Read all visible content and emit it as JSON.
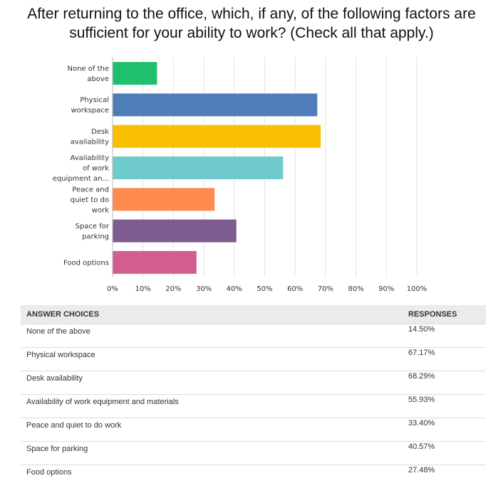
{
  "chart_data": {
    "type": "bar",
    "orientation": "horizontal",
    "title": "After returning to the office, which, if any, of the following factors are sufficient for your ability to work? (Check all that apply.)",
    "categories": [
      [
        "None of the",
        "above"
      ],
      [
        "Physical",
        "workspace"
      ],
      [
        "Desk",
        "availability"
      ],
      [
        "Availability",
        "of work",
        "equipment an..."
      ],
      [
        "Peace and",
        "quiet to do",
        "work"
      ],
      [
        "Space for",
        "parking"
      ],
      [
        "Food options"
      ]
    ],
    "values": [
      14.5,
      67.17,
      68.29,
      55.93,
      33.4,
      40.57,
      27.48
    ],
    "colors": [
      "#1fbf6e",
      "#4f7db8",
      "#f9bf00",
      "#6fcacd",
      "#ff8b4f",
      "#7d5d91",
      "#d25e8e"
    ],
    "xlim": [
      0,
      100
    ],
    "xticks": [
      "0%",
      "10%",
      "20%",
      "30%",
      "40%",
      "50%",
      "60%",
      "70%",
      "80%",
      "90%",
      "100%"
    ],
    "grid": true,
    "legend": "none"
  },
  "table": {
    "headers": [
      "ANSWER CHOICES",
      "RESPONSES"
    ],
    "rows": [
      [
        "None of the above",
        "14.50%"
      ],
      [
        "Physical workspace",
        "67.17%"
      ],
      [
        "Desk availability",
        "68.29%"
      ],
      [
        "Availability of work equipment and materials",
        "55.93%"
      ],
      [
        "Peace and quiet to do work",
        "33.40%"
      ],
      [
        "Space for parking",
        "40.57%"
      ],
      [
        "Food options",
        "27.48%"
      ]
    ]
  }
}
